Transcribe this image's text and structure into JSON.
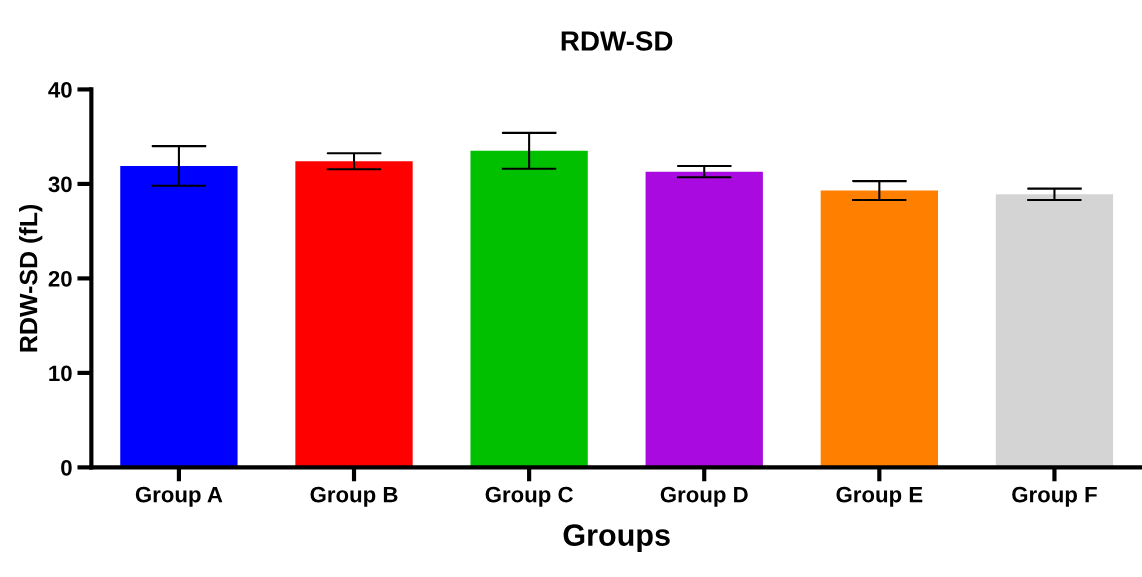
{
  "chart_data": {
    "type": "bar",
    "title": "RDW-SD",
    "xlabel": "Groups",
    "ylabel": "RDW-SD (fL)",
    "categories": [
      "Group A",
      "Group B",
      "Group C",
      "Group D",
      "Group E",
      "Group F"
    ],
    "values": [
      31.9,
      32.4,
      33.5,
      31.3,
      29.3,
      28.9
    ],
    "errors": [
      2.1,
      0.85,
      1.9,
      0.6,
      1.0,
      0.6
    ],
    "colors": [
      "#0000ff",
      "#ff0000",
      "#00c000",
      "#a80ae0",
      "#ff8000",
      "#d4d4d4"
    ],
    "ylim": [
      0,
      40
    ],
    "yticks": [
      0,
      10,
      20,
      30,
      40
    ],
    "grid": false,
    "legend": false
  }
}
